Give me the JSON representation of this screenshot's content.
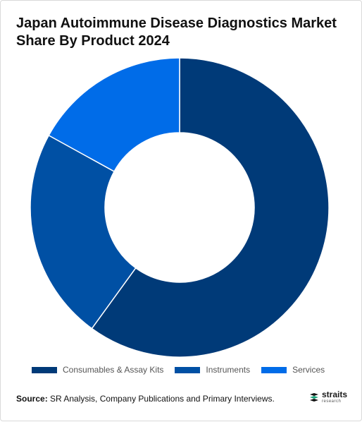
{
  "title": "Japan Autoimmune Disease Diagnostics Market Share By Product 2024",
  "source": {
    "label": "Source",
    "text": "SR Analysis, Company Publications and Primary Interviews."
  },
  "brand": {
    "name": "straits",
    "sub": "research"
  },
  "chart_data": {
    "type": "pie",
    "style": "donut",
    "title": "Japan Autoimmune Disease Diagnostics Market Share By Product 2024",
    "legend_position": "bottom",
    "slices": [
      {
        "label": "Consumables & Assay Kits",
        "value": 60,
        "color": "#003a78"
      },
      {
        "label": "Instruments",
        "value": 23,
        "color": "#0050a4"
      },
      {
        "label": "Services",
        "value": 17,
        "color": "#006ce8"
      }
    ]
  }
}
